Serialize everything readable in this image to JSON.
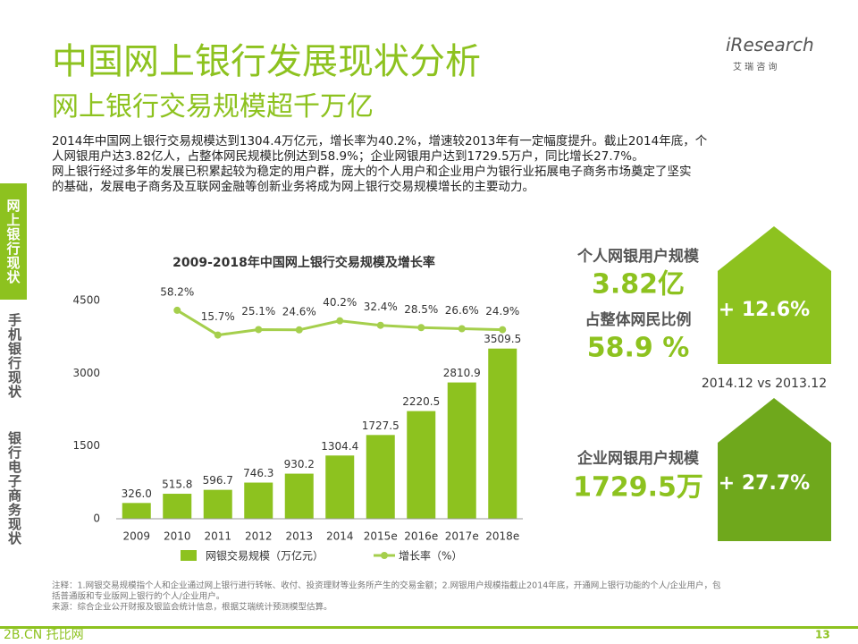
{
  "header": {
    "title": "中国网上银行发展现状分析",
    "subtitle": "网上银行交易规模超千万亿",
    "logo": "iResearch",
    "logo_sub": "艾 瑞 咨 询"
  },
  "intro": {
    "lines": [
      "2014年中国网上银行交易规模达到1304.4万亿元，增长率为40.2%，增速较2013年有一定幅度提升。截止2014年底，个",
      "人网银用户达3.82亿人，占整体网民规模比例达到58.9%；企业网银用户达到1729.5万户，同比增长27.7%。",
      "网上银行经过多年的发展已积累起较为稳定的用户群，庞大的个人用户和企业用户为银行业拓展电子商务市场奠定了坚实",
      "的基础，发展电子商务及互联网金融等创新业务将成为网上银行交易规模增长的主要动力。"
    ]
  },
  "sidebar": {
    "active": "网上银行现状",
    "items": [
      "手机银行现状",
      "银行电子商务现状"
    ]
  },
  "chart_data": {
    "type": "bar_line",
    "title": "2009-2018年中国网上银行交易规模及增长率",
    "categories": [
      "2009",
      "2010",
      "2011",
      "2012",
      "2013",
      "2014",
      "2015e",
      "2016e",
      "2017e",
      "2018e"
    ],
    "series": [
      {
        "name": "网银交易规模（万亿元）",
        "type": "bar",
        "color": "#8dc21f",
        "values": [
          326.0,
          515.8,
          596.7,
          746.3,
          930.2,
          1304.4,
          1727.5,
          2220.5,
          2810.9,
          3509.5
        ],
        "value_labels": [
          "326.0",
          "515.8",
          "596.7",
          "746.3",
          "930.2",
          "1304.4",
          "1727.5",
          "2220.5",
          "2810.9",
          "3509.5"
        ]
      },
      {
        "name": "增长率（%）",
        "type": "line",
        "axis": "y2",
        "color": "#a5cf4c",
        "values": [
          null,
          58.2,
          15.7,
          25.1,
          24.6,
          40.2,
          32.4,
          28.5,
          26.6,
          24.9
        ],
        "value_labels": [
          null,
          "58.2%",
          "15.7%",
          "25.1%",
          "24.6%",
          "40.2%",
          "32.4%",
          "28.5%",
          "26.6%",
          "24.9%"
        ]
      }
    ],
    "ylim": [
      0,
      4500
    ],
    "yticks": [
      0,
      1500,
      3000,
      4500
    ],
    "y2lim": [
      -300,
      75
    ],
    "grid": false,
    "legend": "bottom"
  },
  "stats": {
    "personal_label": "个人网银用户规模",
    "personal_value": "3.82亿",
    "share_label": "占整体网民比例",
    "share_value": "58.9 %",
    "personal_growth": "+ 12.6%",
    "compare": "2014.12 vs 2013.12",
    "corp_label": "企业网银用户规模",
    "corp_value": "1729.5万",
    "corp_growth": "+ 27.7%"
  },
  "notes": [
    "注释：1.网银交易规模指个人和企业通过网上银行进行转帐、收付、投资理财等业务所产生的交易金额；2.网银用户规模指截止2014年底，开通网上银行功能的个人/企业用户，包",
    "括普通版和专业版网上银行的个人/企业用户。",
    "来源：综合企业公开财报及银监会统计信息，根据艾瑞统计预测模型估算。"
  ],
  "footer": {
    "watermark": "2B.CN 托比网",
    "page": "13"
  }
}
